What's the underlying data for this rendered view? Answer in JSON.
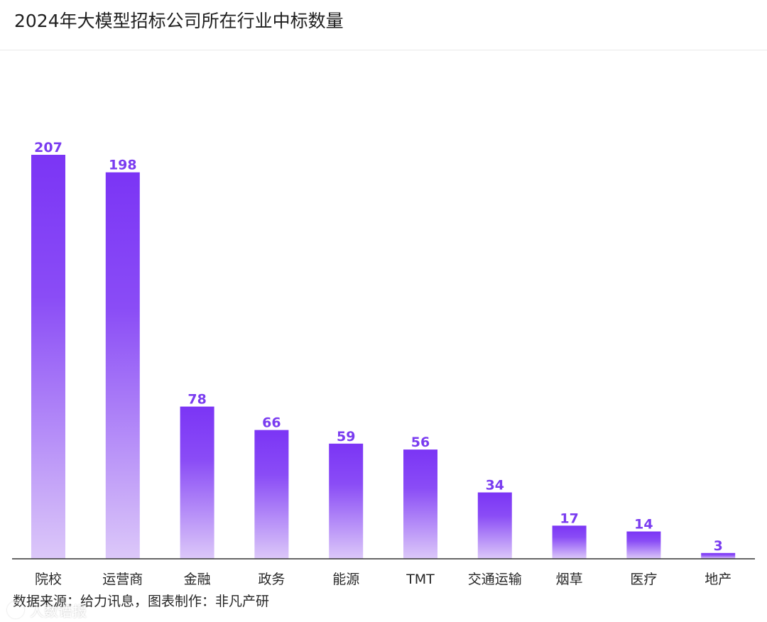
{
  "header": {
    "title": "2024年大模型招标公司所在行业中标数量"
  },
  "footer": {
    "source": "数据来源：给力讯息，图表制作：非凡产研",
    "watermark_text": "人数语报",
    "watermark_icon": "camera-logo-icon"
  },
  "colors": {
    "bar_top": "#7b35f5",
    "bar_bottom": "#dcc8f9",
    "value_label": "#7a3cf0",
    "axis": "#333333"
  },
  "chart_data": {
    "type": "bar",
    "title": "2024年大模型招标公司所在行业中标数量",
    "xlabel": "",
    "ylabel": "",
    "categories": [
      "院校",
      "运营商",
      "金融",
      "政务",
      "能源",
      "TMT",
      "交通运输",
      "烟草",
      "医疗",
      "地产"
    ],
    "values": [
      207,
      198,
      78,
      66,
      59,
      56,
      34,
      17,
      14,
      3
    ],
    "value_labels": [
      "207",
      "198",
      "78",
      "66",
      "59",
      "56",
      "34",
      "17",
      "14",
      "3"
    ],
    "ylim": [
      0,
      207
    ],
    "grid": false,
    "legend": "none"
  }
}
